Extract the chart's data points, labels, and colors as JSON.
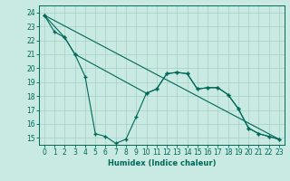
{
  "xlabel": "Humidex (Indice chaleur)",
  "background_color": "#c8eae2",
  "grid_color": "#a8cec8",
  "line_color": "#006858",
  "spine_color": "#006858",
  "xlim": [
    -0.5,
    23.5
  ],
  "ylim": [
    14.5,
    24.5
  ],
  "yticks": [
    15,
    16,
    17,
    18,
    19,
    20,
    21,
    22,
    23,
    24
  ],
  "xticks": [
    0,
    1,
    2,
    3,
    4,
    5,
    6,
    7,
    8,
    9,
    10,
    11,
    12,
    13,
    14,
    15,
    16,
    17,
    18,
    19,
    20,
    21,
    22,
    23
  ],
  "line1_x": [
    0,
    1,
    2,
    3,
    4,
    5,
    6,
    7,
    8,
    9,
    10,
    11,
    12,
    13,
    14,
    15,
    16,
    17,
    18,
    19,
    20,
    21,
    22,
    23
  ],
  "line1_y": [
    23.8,
    22.6,
    22.2,
    21.0,
    19.4,
    15.3,
    15.1,
    14.6,
    14.9,
    16.5,
    18.2,
    18.5,
    19.6,
    19.7,
    19.6,
    18.5,
    18.6,
    18.6,
    18.1,
    17.1,
    15.7,
    15.3,
    15.1,
    14.9
  ],
  "line2_x": [
    0,
    2,
    3,
    10,
    11,
    12,
    13,
    14,
    15,
    16,
    17,
    18,
    19,
    20,
    21,
    22,
    23
  ],
  "line2_y": [
    23.8,
    22.2,
    21.0,
    18.2,
    18.5,
    19.6,
    19.7,
    19.6,
    18.5,
    18.6,
    18.6,
    18.1,
    17.1,
    15.7,
    15.3,
    15.1,
    14.9
  ],
  "line3_x": [
    0,
    23
  ],
  "line3_y": [
    23.8,
    14.9
  ],
  "tick_fontsize": 5.5,
  "xlabel_fontsize": 6.0,
  "marker": "+",
  "markersize": 3.5,
  "linewidth": 0.8
}
